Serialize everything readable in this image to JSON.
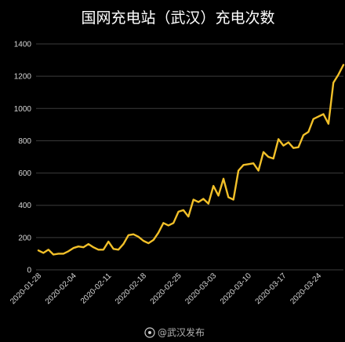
{
  "chart_data": {
    "type": "line",
    "title": "国网充电站（武汉）充电次数",
    "xlabel": "",
    "ylabel": "",
    "ylim": [
      0,
      1400
    ],
    "yticks": [
      0,
      200,
      400,
      600,
      800,
      1000,
      1200,
      1400
    ],
    "grid": true,
    "legend": "none",
    "x": [
      "2020-01-28",
      "2020-01-29",
      "2020-01-30",
      "2020-01-31",
      "2020-02-01",
      "2020-02-02",
      "2020-02-03",
      "2020-02-04",
      "2020-02-05",
      "2020-02-06",
      "2020-02-07",
      "2020-02-08",
      "2020-02-09",
      "2020-02-10",
      "2020-02-11",
      "2020-02-12",
      "2020-02-13",
      "2020-02-14",
      "2020-02-15",
      "2020-02-16",
      "2020-02-17",
      "2020-02-18",
      "2020-02-19",
      "2020-02-20",
      "2020-02-21",
      "2020-02-22",
      "2020-02-23",
      "2020-02-24",
      "2020-02-25",
      "2020-02-26",
      "2020-02-27",
      "2020-02-28",
      "2020-02-29",
      "2020-03-01",
      "2020-03-02",
      "2020-03-03",
      "2020-03-04",
      "2020-03-05",
      "2020-03-06",
      "2020-03-07",
      "2020-03-08",
      "2020-03-09",
      "2020-03-10",
      "2020-03-11",
      "2020-03-12",
      "2020-03-13",
      "2020-03-14",
      "2020-03-15",
      "2020-03-16",
      "2020-03-17",
      "2020-03-18",
      "2020-03-19",
      "2020-03-20",
      "2020-03-21",
      "2020-03-22",
      "2020-03-23",
      "2020-03-24",
      "2020-03-25",
      "2020-03-26",
      "2020-03-27",
      "2020-03-28",
      "2020-03-29"
    ],
    "xticks": [
      "2020-01-28",
      "2020-02-04",
      "2020-02-11",
      "2020-02-18",
      "2020-02-25",
      "2020-03-03",
      "2020-03-10",
      "2020-03-17",
      "2020-03-24"
    ],
    "series": [
      {
        "name": "",
        "color": "#f2c029",
        "values": [
          120,
          105,
          125,
          95,
          100,
          100,
          115,
          135,
          145,
          140,
          160,
          140,
          125,
          125,
          175,
          130,
          125,
          160,
          215,
          220,
          205,
          180,
          165,
          185,
          230,
          290,
          275,
          290,
          360,
          370,
          330,
          435,
          420,
          440,
          410,
          520,
          460,
          565,
          450,
          435,
          615,
          650,
          655,
          660,
          615,
          730,
          700,
          690,
          810,
          770,
          790,
          755,
          760,
          835,
          855,
          935,
          950,
          965,
          905,
          1160,
          1210,
          1270
        ]
      }
    ]
  },
  "watermark": {
    "label": "@武汉发布"
  }
}
